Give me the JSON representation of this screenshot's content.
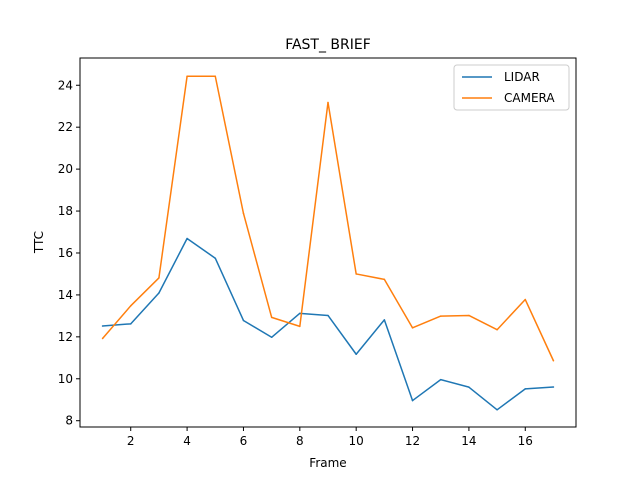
{
  "chart_data": {
    "type": "line",
    "title": "FAST_ BRIEF",
    "xlabel": "Frame",
    "ylabel": "TTC",
    "xlim": [
      0.2,
      17.8
    ],
    "ylim": [
      7.7,
      25.3
    ],
    "xticks": [
      2,
      4,
      6,
      8,
      10,
      12,
      14,
      16
    ],
    "yticks": [
      8,
      10,
      12,
      14,
      16,
      18,
      20,
      22,
      24
    ],
    "grid": false,
    "legend_position": "top-right",
    "x": [
      1,
      2,
      3,
      4,
      5,
      6,
      7,
      8,
      9,
      10,
      11,
      12,
      13,
      14,
      15,
      16,
      17
    ],
    "series": [
      {
        "name": "LIDAR",
        "color": "#1f77b4",
        "values": [
          12.52,
          12.62,
          14.09,
          16.69,
          15.75,
          12.78,
          11.98,
          13.12,
          13.02,
          11.17,
          12.81,
          8.96,
          9.96,
          9.6,
          8.52,
          9.52,
          9.61
        ]
      },
      {
        "name": "CAMERA",
        "color": "#ff7f0e",
        "values": [
          11.92,
          13.48,
          14.81,
          24.43,
          24.43,
          17.89,
          12.93,
          12.5,
          23.18,
          15.0,
          14.74,
          12.43,
          12.99,
          13.02,
          12.34,
          13.78,
          10.86
        ]
      }
    ]
  }
}
